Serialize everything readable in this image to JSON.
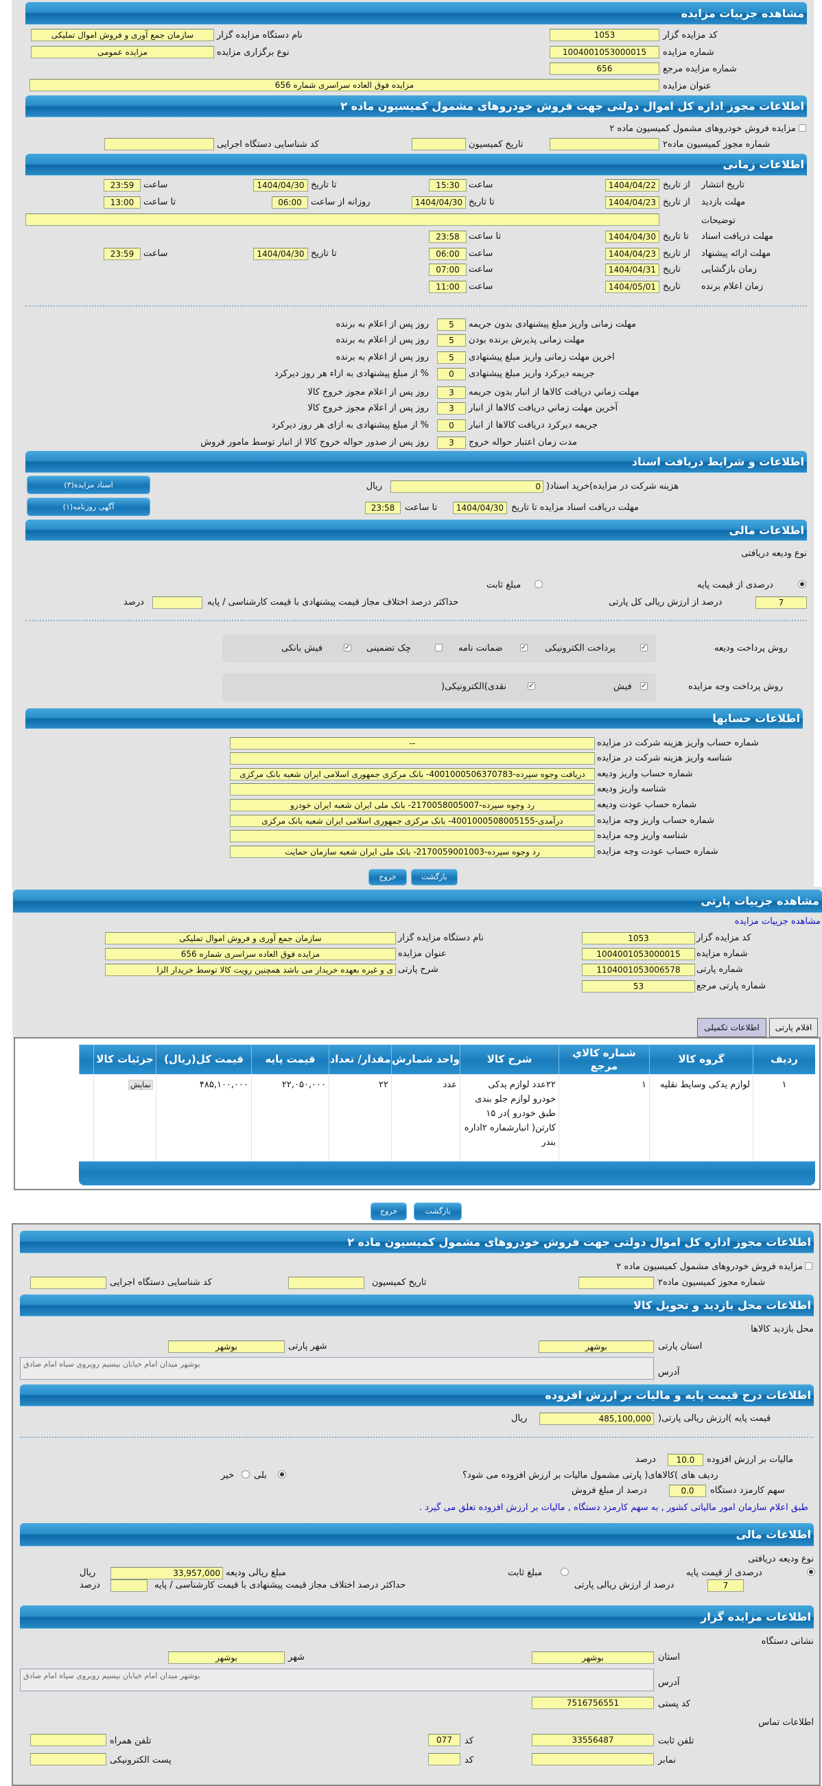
{
  "auction": {
    "header": "مشاهده جزییات مزایده",
    "code_label": "کد مزایده گزار",
    "code": "1053",
    "org_label": "نام دستگاه مزایده گزار",
    "org": "سازمان جمع آوری و فروش اموال تملیکی",
    "number_label": "شماره مزایده",
    "number": "1004001053000015",
    "type_label": "نوع برگزاری مزایده",
    "type": "مزایده عمومی",
    "ref_label": "شماره مزایده مرجع",
    "ref": "656",
    "title_label": "عنوان مزایده",
    "title": "مزایده فوق العاده سراسری شماره 656"
  },
  "permit": {
    "header": "اطلاعات مجوز اداره کل اموال دولتی جهت فروش خودروهای مشمول کمیسیون ماده ۲",
    "checkbox_label": "مزایده فروش خودروهای مشمول کمیسیون ماده ۲",
    "checkbox_checked": false,
    "permit_label": "شماره مجوز کمیسیون ماده۲",
    "permit": "",
    "date_label": "تاریخ کمیسیون",
    "date": "",
    "exec_label": "کد شناسایی دستگاه اجرایی",
    "exec": ""
  },
  "timing": {
    "header": "اطلاعات زمانی",
    "rows": [
      {
        "label": "تاریخ انتشار",
        "sub": "از تاریخ",
        "v1": "1404/04/22",
        "c2_label": "ساعت",
        "c2": "15:30",
        "c3_label": "تا تاریخ",
        "c3": "1404/04/30",
        "c4_label": "ساعت",
        "c4": "23:59"
      },
      {
        "label": "مهلت بازدید",
        "sub": "از تاریخ",
        "v1": "1404/04/23",
        "c2_label": "تا تاریخ",
        "c2": "1404/04/30",
        "c3_label": "روزانه از ساعت",
        "c3": "06:00",
        "c4_label": "تا ساعت",
        "c4": "13:00"
      },
      {
        "label": "مهلت دریافت اسناد",
        "sub": "تا تاریخ",
        "v1": "1404/04/30",
        "c2_label": "تا ساعت",
        "c2": "23:58"
      },
      {
        "label": "مهلت ارائه پیشنهاد",
        "sub": "از تاریخ",
        "v1": "1404/04/23",
        "c2_label": "ساعت",
        "c2": "06:00",
        "c3_label": "تا تاریخ",
        "c3": "1404/04/30",
        "c4_label": "ساعت",
        "c4": "23:59"
      },
      {
        "label": "زمان بازگشایی",
        "sub": "تاریخ",
        "v1": "1404/04/31",
        "c2_label": "ساعت",
        "c2": "07:00"
      },
      {
        "label": "زمان اعلام برنده",
        "sub": "تاریخ",
        "v1": "1404/05/01",
        "c2_label": "ساعت",
        "c2": "11:00"
      }
    ],
    "desc_label": "توضیحات",
    "desc": ""
  },
  "deadlines": [
    {
      "label": "مهلت زمانی واریز مبلغ پیشنهادی بدون جریمه",
      "value": "5",
      "suffix": "روز پس از اعلام به برنده"
    },
    {
      "label": "مهلت زمانی پذیرش برنده بودن",
      "value": "5",
      "suffix": "روز پس از اعلام به برنده"
    },
    {
      "label": "اخرین مهلت زمانی واریز مبلغ پیشنهادی",
      "value": "5",
      "suffix": "روز پس از اعلام به برنده"
    },
    {
      "label": "جریمه دیرکرد واریز مبلغ پیشنهادی",
      "value": "0",
      "suffix": "% از مبلغ پیشنهادی به ازاء هر روز دیرکرد"
    },
    {
      "label": "مهلت زماني دريافت كالاها از انبار بدون جريمه",
      "value": "3",
      "suffix": "روز پس از اعلام مجوز خروج کالا"
    },
    {
      "label": "آخرین مهلت زماني دريافت كالاها از انبار",
      "value": "3",
      "suffix": "روز پس از اعلام مجوز خروج کالا"
    },
    {
      "label": "جریمه دیرکرد دریافت کالاها از انبار",
      "value": "0",
      "suffix": "% از مبلغ پیشنهادی به ازای هر روز دیرکرد"
    },
    {
      "label": "مدت زمان اعتبار حواله خروج",
      "value": "3",
      "suffix": "روز پس از صدور حواله خروج کالا از انبار توسط مامور فروش"
    }
  ],
  "docs": {
    "header": "اطلاعات و شرایط دریافت اسناد",
    "btn_docs": "اسناد مزایده(۳)",
    "btn_ads": "آگهی روزنامه(۱)",
    "fee_label": "هزینه شرکت در مزایده)خرید اسناد(",
    "fee": "0",
    "fee_unit": "ریال",
    "deadline_label": "مهلت دریافت اسناد مزایده تا تاریخ",
    "deadline_date": "1404/04/30",
    "deadline_time_label": "تا ساعت",
    "deadline_time": "23:58"
  },
  "finance": {
    "header": "اطلاعات مالی",
    "deposit_type_label": "نوع ودیعه دریافتی",
    "opt_percent": "درصدی از قیمت پایه",
    "opt_percent_selected": true,
    "opt_fixed": "مبلغ ثابت",
    "opt_fixed_selected": false,
    "percent": "7",
    "percent_label": "درصد از ارزش ریالی کل پارتی",
    "maxdiff_label": "حداکثر درصد اختلاف مجاز قیمت پیشنهادی با قیمت کارشناسی / پایه",
    "maxdiff": "",
    "maxdiff_unit": "درصد",
    "deposit_method_label": "روش پرداخت ودیعه",
    "deposit_methods": [
      {
        "label": "پرداخت الکترونیکی",
        "checked": true
      },
      {
        "label": "ضمانت نامه",
        "checked": true
      },
      {
        "label": "چک تضمینی",
        "checked": false
      },
      {
        "label": "فیش بانکی",
        "checked": true
      }
    ],
    "payment_method_label": "روش پرداخت وجه مزایده",
    "payment_methods": [
      {
        "label": "فیش",
        "checked": true
      },
      {
        "label": "نقدی)الکترونیکی(",
        "checked": true
      }
    ]
  },
  "accounts": {
    "header": "اطلاعات حسابها",
    "rows": [
      {
        "label": "شماره حساب واریز هزینه شرکت در مزایده",
        "value": "--"
      },
      {
        "label": "شناسه واریز هزینه شرکت در مزایده",
        "value": ""
      },
      {
        "label": "شماره حساب واریز ودیعه",
        "value": "دریافت وجوه سپرده-4001000506370783- بانک مرکزی جمهوری اسلامی ایران شعبه بانک مرکزی"
      },
      {
        "label": "شناسه واریز ودیعه",
        "value": ""
      },
      {
        "label": "شماره حساب عودت ودیعه",
        "value": "رد وجوه سپرده-2170058005007- بانک ملی ایران شعبه ایران خودرو"
      },
      {
        "label": "شماره حساب واریز وجه مزایده",
        "value": "درآمدی-4001000508005155- بانک مرکزی جمهوری اسلامی ایران شعبه بانک مرکزی"
      },
      {
        "label": "شناسه واریز وجه مزایده",
        "value": ""
      },
      {
        "label": "شماره حساب عودت وجه مزایده",
        "value": "رد وجوه سپرده-2170059001003- بانک ملی ایران شعبه سازمان حمایت"
      }
    ],
    "back": "بازگشت",
    "exit": "خروج"
  },
  "party": {
    "header": "مشاهده جزییات پارتی",
    "link": "مشاهده جزییات مزایده",
    "code_label": "کد مزایده گزار",
    "code": "1053",
    "org_label": "نام دستگاه مزایده گزار",
    "org": "سازمان جمع آوری و فروش اموال تملیکی",
    "number_label": "شماره مزایده",
    "number": "1004001053000015",
    "title_label": "عنوان مزایده",
    "title": "مزایده فوق العاده سراسری شماره 656",
    "party_no_label": "شماره پارتی",
    "party_no": "1104001053006578",
    "desc_label": "شرح پارتی",
    "desc": "ی و غیره بعهده خریدار می باشد همچنین رویت کالا توسط خریدار الزا",
    "ref_label": "شماره پارتی مرجع",
    "ref": "53",
    "tabs": [
      {
        "label": "اقلام پارتی",
        "active": true
      },
      {
        "label": "اطلاعات تکمیلی",
        "active": false
      }
    ],
    "table": {
      "headers": [
        "ردیف",
        "گروه کالا",
        "شماره کالاي مرجع",
        "شرح کالا",
        "واحد شمارش",
        "مقدار/ تعداد",
        "قیمت پایه",
        "قیمت کل(ریال)",
        "جزئیات کالا"
      ],
      "rows": [
        [
          "۱",
          "لوازم یدکی وسایط نقلیه",
          "۱",
          "۲۲عدد لوازم یدکی خودرو لوازم جلو بندی طبق خودرو )در ۱۵ کارتن( انبارشماره ۲اداره بندر",
          "عدد",
          "۲۲",
          "۲۲,۰۵۰,۰۰۰",
          "۴۸۵,۱۰۰,۰۰۰",
          "نمایش"
        ]
      ]
    },
    "back": "بازگشت",
    "exit": "خروج"
  },
  "permit2": {
    "header": "اطلاعات مجوز اداره کل اموال دولتی جهت فروش خودروهای مشمول کمیسیون ماده ۲",
    "checkbox_label": "مزایده فروش خودروهای مشمول کمیسیون ماده ۲",
    "checkbox_checked": false,
    "permit_label": "شماره مجوز کمیسیون ماده۲",
    "permit": "",
    "date_label": "تاریخ کمیسیون",
    "date": "",
    "exec_label": "کد شناسایی دستگاه اجرایی",
    "exec": ""
  },
  "visit": {
    "header": "اطلاعات محل بازدید و تحویل کالا",
    "place_label": "محل بازدید کالاها",
    "province_label": "استان پارتی",
    "province": "بوشهر",
    "city_label": "شهر پارتی",
    "city": "بوشهر",
    "address_label": "آدرس",
    "address": "بوشهر میدان امام خیابان بیسیم روبروی سپاه امام صادق"
  },
  "tax": {
    "header": "اطلاعات درج قیمت پایه و مالیات بر ارزش افزوده",
    "base_label": "قیمت پایه )ارزش ریالی پارتی(",
    "base": "485,100,000",
    "base_unit": "ریال",
    "vat_label": "مالیات بر ارزش افزوده",
    "vat": "10.0",
    "vat_unit": "درصد",
    "vat_q": "ردیف های )کالاهای( پارتی مشمول مالیات بر ارزش افزوده می شود؟",
    "yes": "بلی",
    "yes_selected": true,
    "no": "خیر",
    "no_selected": false,
    "fee_label": "سهم کارمزد دستگاه",
    "fee": "0.0",
    "fee_unit": "درصد از مبلغ فروش",
    "note": "طبق اعلام سازمان امور مالیاتی کشور , به سهم کارمزد دستگاه , مالیات بر ارزش افزوده تعلق می گیرد ."
  },
  "finance2": {
    "header": "اطلاعات مالی",
    "deposit_type_label": "نوع ودیعه دریافتی",
    "opt_percent": "درصدی از قیمت پایه",
    "opt_percent_selected": true,
    "opt_fixed": "مبلغ ثابت",
    "opt_fixed_selected": false,
    "amount_label": "مبلغ ریالی ودیعه",
    "amount": "33,957,000",
    "amount_unit": "ریال",
    "percent": "7",
    "percent_label": "درصد از ارزش ریالی پارتی",
    "maxdiff_label": "حداکثر درصد اختلاف مجاز قیمت پیشنهادی با قیمت کارشناسی / پایه",
    "maxdiff": "",
    "maxdiff_unit": "درصد"
  },
  "auctioneer": {
    "header": "اطلاعات مزایده گزار",
    "address_title": "نشانی دستگاه",
    "province_label": "استان",
    "province": "بوشهر",
    "city_label": "شهر",
    "city": "بوشهر",
    "address_label": "آدرس",
    "address": "بوشهر میدان امام خیابان بیسیم روبروی سپاه امام صادق",
    "postal_label": "کد پستی",
    "postal": "7516756551",
    "contact_title": "اطلاعات تماس",
    "phone_label": "تلفن ثابت",
    "phone": "33556487",
    "phone_code_label": "کد",
    "phone_code": "077",
    "mobile_label": "تلفن همراه",
    "mobile": "",
    "fax_label": "نمابر",
    "fax": "",
    "fax_code_label": "کد",
    "fax_code": "",
    "email_label": "پست الکترونیکی",
    "email": ""
  }
}
